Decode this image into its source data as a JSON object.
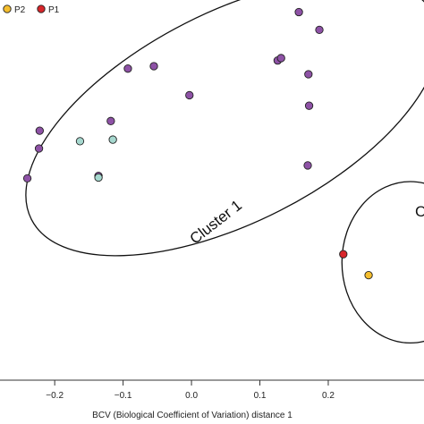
{
  "chart_data": {
    "type": "scatter",
    "xlabel": "BCV (Biological Coefficient of Variation) distance 1",
    "xlim": [
      -0.28,
      0.34
    ],
    "ylim": [
      -0.255,
      0.215
    ],
    "x_ticks": [
      -0.2,
      -0.1,
      0.0,
      0.1,
      0.2
    ],
    "x_tick_labels": [
      "−0.2",
      "−0.1",
      "0.0",
      "0.1",
      "0.2"
    ],
    "legend": [
      {
        "label": "P2",
        "color": "#f5be2e"
      },
      {
        "label": "P1",
        "color": "#d8262b"
      }
    ],
    "series": [
      {
        "name": "",
        "color": "#8e52a6",
        "points": [
          {
            "x": 0.157,
            "y": 0.2
          },
          {
            "x": 0.187,
            "y": 0.178
          },
          {
            "x": 0.126,
            "y": 0.14
          },
          {
            "x": 0.131,
            "y": 0.143
          },
          {
            "x": -0.055,
            "y": 0.133
          },
          {
            "x": -0.093,
            "y": 0.13
          },
          {
            "x": 0.171,
            "y": 0.123
          },
          {
            "x": 0.172,
            "y": 0.084
          },
          {
            "x": -0.003,
            "y": 0.097
          },
          {
            "x": -0.118,
            "y": 0.065
          },
          {
            "x": -0.222,
            "y": 0.053
          },
          {
            "x": -0.223,
            "y": 0.031
          },
          {
            "x": 0.17,
            "y": 0.01
          },
          {
            "x": -0.24,
            "y": -0.006
          },
          {
            "x": -0.136,
            "y": -0.003
          }
        ]
      },
      {
        "name": "",
        "color": "#a6d8cf",
        "points": [
          {
            "x": -0.163,
            "y": 0.04
          },
          {
            "x": -0.115,
            "y": 0.042
          },
          {
            "x": -0.136,
            "y": -0.005
          }
        ]
      },
      {
        "name": "P1",
        "color": "#d8262b",
        "points": [
          {
            "x": 0.222,
            "y": -0.1
          }
        ]
      },
      {
        "name": "P2",
        "color": "#f5be2e",
        "points": [
          {
            "x": 0.259,
            "y": -0.126
          }
        ]
      }
    ],
    "annotations": [
      {
        "text": "Cluster 1",
        "x": 0.04,
        "y": -0.065,
        "rotation": -38
      },
      {
        "text": "C",
        "x": 0.335,
        "y": -0.053,
        "rotation": 0
      }
    ],
    "ellipses": [
      {
        "name": "cluster-1",
        "cx": 0.06,
        "cy": 0.07,
        "rx": 0.33,
        "ry": 0.13,
        "rotation": -27
      },
      {
        "name": "cluster-2",
        "cx": 0.32,
        "cy": -0.11,
        "rx": 0.1,
        "ry": 0.1,
        "rotation": 0
      }
    ]
  }
}
